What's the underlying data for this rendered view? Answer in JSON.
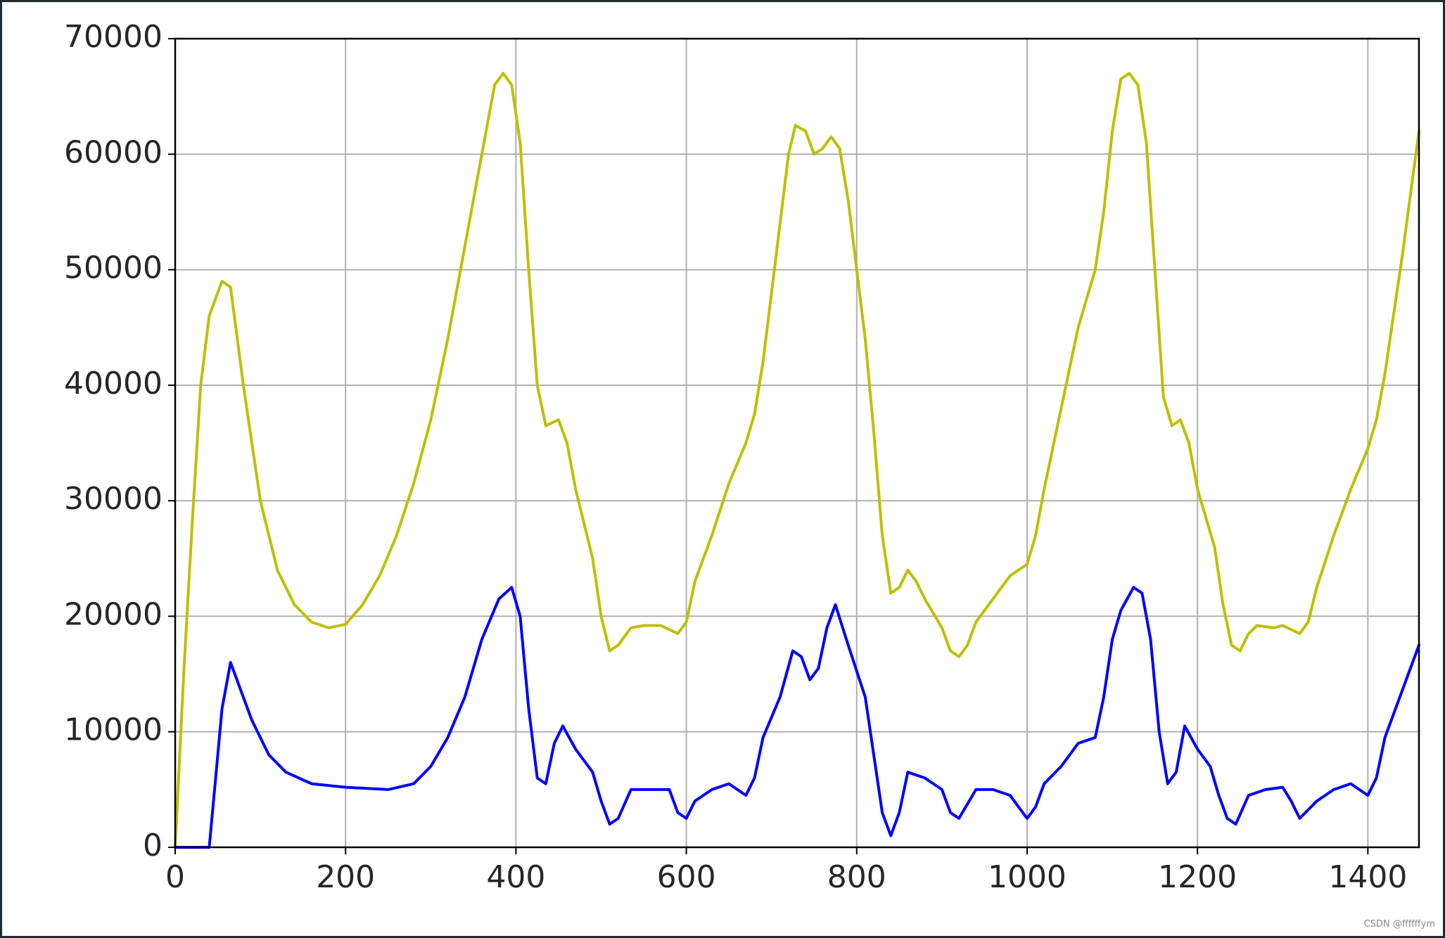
{
  "chart_data": {
    "type": "line",
    "xlim": [
      0,
      1460
    ],
    "xticks": [
      0,
      200,
      400,
      600,
      800,
      1000,
      1200,
      1400
    ],
    "ylim": [
      0,
      70000
    ],
    "yticks": [
      0,
      10000,
      20000,
      30000,
      40000,
      50000,
      60000,
      70000
    ],
    "grid": true,
    "watermark": "CSDN @ffffffym",
    "series": [
      {
        "color": "#bfbf00",
        "x": [
          0,
          10,
          20,
          30,
          40,
          55,
          65,
          80,
          100,
          120,
          140,
          160,
          180,
          200,
          220,
          240,
          260,
          280,
          300,
          320,
          340,
          360,
          375,
          385,
          395,
          405,
          415,
          425,
          435,
          450,
          460,
          470,
          490,
          500,
          510,
          520,
          535,
          550,
          570,
          590,
          600,
          610,
          630,
          650,
          670,
          680,
          690,
          700,
          710,
          720,
          728,
          740,
          750,
          760,
          770,
          780,
          790,
          800,
          810,
          820,
          830,
          840,
          850,
          860,
          870,
          880,
          900,
          910,
          920,
          930,
          940,
          960,
          980,
          1000,
          1010,
          1020,
          1040,
          1060,
          1080,
          1090,
          1100,
          1110,
          1120,
          1130,
          1140,
          1150,
          1160,
          1170,
          1180,
          1190,
          1200,
          1220,
          1230,
          1240,
          1250,
          1260,
          1270,
          1290,
          1300,
          1320,
          1330,
          1340,
          1360,
          1380,
          1400,
          1410,
          1420,
          1440,
          1460
        ],
        "values": [
          0,
          15000,
          28000,
          40000,
          46000,
          49000,
          48500,
          40000,
          30000,
          24000,
          21000,
          19500,
          19000,
          19300,
          21000,
          23500,
          27000,
          31500,
          37000,
          44000,
          52000,
          60000,
          66000,
          67000,
          66000,
          61000,
          50000,
          40000,
          36500,
          37000,
          35000,
          31000,
          25000,
          20000,
          17000,
          17500,
          19000,
          19200,
          19200,
          18500,
          19500,
          23000,
          27000,
          31500,
          35000,
          37500,
          42000,
          48000,
          54000,
          60000,
          62500,
          62000,
          60000,
          60500,
          61500,
          60500,
          56000,
          50000,
          44000,
          36000,
          27000,
          22000,
          22500,
          24000,
          23000,
          21500,
          19000,
          17000,
          16500,
          17500,
          19500,
          21500,
          23500,
          24500,
          27000,
          31000,
          38000,
          45000,
          50000,
          55000,
          62000,
          66500,
          67000,
          66000,
          61000,
          50000,
          39000,
          36500,
          37000,
          35000,
          31000,
          26000,
          21000,
          17500,
          17000,
          18500,
          19200,
          19000,
          19200,
          18500,
          19500,
          22500,
          27000,
          31000,
          34500,
          37000,
          41000,
          51000,
          62000
        ]
      },
      {
        "color": "#0000ff",
        "x": [
          0,
          20,
          40,
          45,
          55,
          65,
          75,
          90,
          110,
          130,
          160,
          200,
          250,
          280,
          300,
          320,
          340,
          360,
          380,
          395,
          405,
          415,
          425,
          435,
          445,
          455,
          470,
          490,
          500,
          510,
          520,
          535,
          560,
          580,
          590,
          600,
          610,
          630,
          650,
          670,
          680,
          690,
          710,
          725,
          735,
          745,
          755,
          765,
          775,
          790,
          810,
          820,
          830,
          840,
          850,
          860,
          880,
          900,
          910,
          920,
          940,
          960,
          980,
          990,
          1000,
          1010,
          1020,
          1040,
          1060,
          1080,
          1090,
          1100,
          1110,
          1125,
          1135,
          1145,
          1155,
          1165,
          1175,
          1185,
          1200,
          1215,
          1225,
          1235,
          1245,
          1260,
          1280,
          1300,
          1310,
          1320,
          1340,
          1360,
          1380,
          1390,
          1400,
          1410,
          1420,
          1440,
          1460
        ],
        "values": [
          0,
          0,
          0,
          4000,
          12000,
          16000,
          14000,
          11000,
          8000,
          6500,
          5500,
          5200,
          5000,
          5500,
          7000,
          9500,
          13000,
          18000,
          21500,
          22500,
          20000,
          12000,
          6000,
          5500,
          9000,
          10500,
          8500,
          6500,
          4000,
          2000,
          2500,
          5000,
          5000,
          5000,
          3000,
          2500,
          4000,
          5000,
          5500,
          4500,
          6000,
          9500,
          13000,
          17000,
          16500,
          14500,
          15500,
          19000,
          21000,
          17500,
          13000,
          8000,
          3000,
          1000,
          3000,
          6500,
          6000,
          5000,
          3000,
          2500,
          5000,
          5000,
          4500,
          3500,
          2500,
          3500,
          5500,
          7000,
          9000,
          9500,
          13000,
          18000,
          20500,
          22500,
          22000,
          18000,
          10000,
          5500,
          6500,
          10500,
          8500,
          7000,
          4500,
          2500,
          2000,
          4500,
          5000,
          5200,
          4000,
          2500,
          4000,
          5000,
          5500,
          5000,
          4500,
          6000,
          9500,
          13500,
          17500
        ]
      }
    ]
  }
}
